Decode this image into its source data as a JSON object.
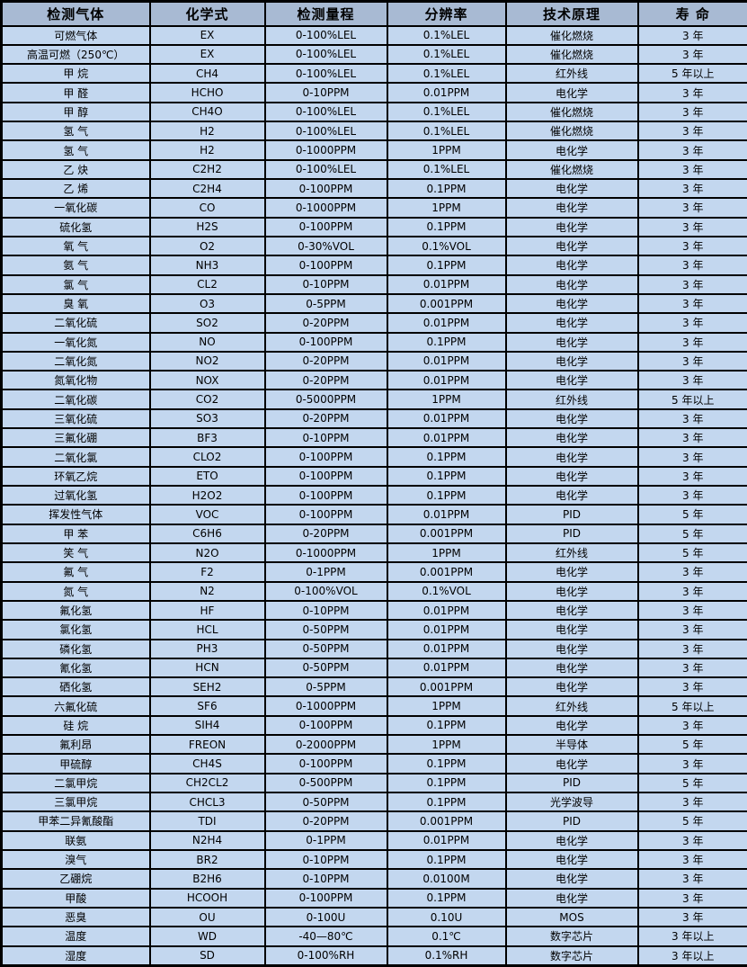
{
  "colors": {
    "header_bg": "#a8bad3",
    "row_bg": "#c3d7ef",
    "border": "#000000",
    "text": "#000000"
  },
  "table": {
    "columns": [
      "检测气体",
      "化学式",
      "检测量程",
      "分辨率",
      "技术原理",
      "寿 命"
    ],
    "rows": [
      [
        "可燃气体",
        "EX",
        "0-100%LEL",
        "0.1%LEL",
        "催化燃烧",
        "3 年"
      ],
      [
        "高温可燃（250℃）",
        "EX",
        "0-100%LEL",
        "0.1%LEL",
        "催化燃烧",
        "3 年"
      ],
      [
        "甲 烷",
        "CH4",
        "0-100%LEL",
        "0.1%LEL",
        "红外线",
        "5 年以上"
      ],
      [
        "甲 醛",
        "HCHO",
        "0-10PPM",
        "0.01PPM",
        "电化学",
        "3 年"
      ],
      [
        "甲 醇",
        "CH4O",
        "0-100%LEL",
        "0.1%LEL",
        "催化燃烧",
        "3 年"
      ],
      [
        "氢 气",
        "H2",
        "0-100%LEL",
        "0.1%LEL",
        "催化燃烧",
        "3 年"
      ],
      [
        "氢 气",
        "H2",
        "0-1000PPM",
        "1PPM",
        "电化学",
        "3 年"
      ],
      [
        "乙 炔",
        "C2H2",
        "0-100%LEL",
        "0.1%LEL",
        "催化燃烧",
        "3 年"
      ],
      [
        "乙 烯",
        "C2H4",
        "0-100PPM",
        "0.1PPM",
        "电化学",
        "3 年"
      ],
      [
        "一氧化碳",
        "CO",
        "0-1000PPM",
        "1PPM",
        "电化学",
        "3 年"
      ],
      [
        "硫化氢",
        "H2S",
        "0-100PPM",
        "0.1PPM",
        "电化学",
        "3 年"
      ],
      [
        "氧 气",
        "O2",
        "0-30%VOL",
        "0.1%VOL",
        "电化学",
        "3 年"
      ],
      [
        "氨 气",
        "NH3",
        "0-100PPM",
        "0.1PPM",
        "电化学",
        "3 年"
      ],
      [
        "氯 气",
        "CL2",
        "0-10PPM",
        "0.01PPM",
        "电化学",
        "3 年"
      ],
      [
        "臭 氧",
        "O3",
        "0-5PPM",
        "0.001PPM",
        "电化学",
        "3 年"
      ],
      [
        "二氧化硫",
        "SO2",
        "0-20PPM",
        "0.01PPM",
        "电化学",
        "3 年"
      ],
      [
        "一氧化氮",
        "NO",
        "0-100PPM",
        "0.1PPM",
        "电化学",
        "3 年"
      ],
      [
        "二氧化氮",
        "NO2",
        "0-20PPM",
        "0.01PPM",
        "电化学",
        "3 年"
      ],
      [
        "氮氧化物",
        "NOX",
        "0-20PPM",
        "0.01PPM",
        "电化学",
        "3 年"
      ],
      [
        "二氧化碳",
        "CO2",
        "0-5000PPM",
        "1PPM",
        "红外线",
        "5 年以上"
      ],
      [
        "三氧化硫",
        "SO3",
        "0-20PPM",
        "0.01PPM",
        "电化学",
        "3 年"
      ],
      [
        "三氟化硼",
        "BF3",
        "0-10PPM",
        "0.01PPM",
        "电化学",
        "3 年"
      ],
      [
        "二氧化氯",
        "CLO2",
        "0-100PPM",
        "0.1PPM",
        "电化学",
        "3 年"
      ],
      [
        "环氧乙烷",
        "ETO",
        "0-100PPM",
        "0.1PPM",
        "电化学",
        "3 年"
      ],
      [
        "过氧化氢",
        "H2O2",
        "0-100PPM",
        "0.1PPM",
        "电化学",
        "3 年"
      ],
      [
        "挥发性气体",
        "VOC",
        "0-100PPM",
        "0.01PPM",
        "PID",
        "5 年"
      ],
      [
        "甲 苯",
        "C6H6",
        "0-20PPM",
        "0.001PPM",
        "PID",
        "5 年"
      ],
      [
        "笑 气",
        "N2O",
        "0-1000PPM",
        "1PPM",
        "红外线",
        "5 年"
      ],
      [
        "氟 气",
        "F2",
        "0-1PPM",
        "0.001PPM",
        "电化学",
        "3 年"
      ],
      [
        "氮 气",
        "N2",
        "0-100%VOL",
        "0.1%VOL",
        "电化学",
        "3 年"
      ],
      [
        "氟化氢",
        "HF",
        "0-10PPM",
        "0.01PPM",
        "电化学",
        "3 年"
      ],
      [
        "氯化氢",
        "HCL",
        "0-50PPM",
        "0.01PPM",
        "电化学",
        "3 年"
      ],
      [
        "磷化氢",
        "PH3",
        "0-50PPM",
        "0.01PPM",
        "电化学",
        "3 年"
      ],
      [
        "氰化氢",
        "HCN",
        "0-50PPM",
        "0.01PPM",
        "电化学",
        "3 年"
      ],
      [
        "硒化氢",
        "SEH2",
        "0-5PPM",
        "0.001PPM",
        "电化学",
        "3 年"
      ],
      [
        "六氟化硫",
        "SF6",
        "0-1000PPM",
        "1PPM",
        "红外线",
        "5 年以上"
      ],
      [
        "硅 烷",
        "SIH4",
        "0-100PPM",
        "0.1PPM",
        "电化学",
        "3 年"
      ],
      [
        "氟利昂",
        "FREON",
        "0-2000PPM",
        "1PPM",
        "半导体",
        "5 年"
      ],
      [
        "甲硫醇",
        "CH4S",
        "0-100PPM",
        "0.1PPM",
        "电化学",
        "3 年"
      ],
      [
        "二氯甲烷",
        "CH2CL2",
        "0-500PPM",
        "0.1PPM",
        "PID",
        "5 年"
      ],
      [
        "三氯甲烷",
        "CHCL3",
        "0-50PPM",
        "0.1PPM",
        "光学波导",
        "3 年"
      ],
      [
        "甲苯二异氰酸酯",
        "TDI",
        "0-20PPM",
        "0.001PPM",
        "PID",
        "5 年"
      ],
      [
        "联氨",
        "N2H4",
        "0-1PPM",
        "0.01PPM",
        "电化学",
        "3 年"
      ],
      [
        "溴气",
        "BR2",
        "0-10PPM",
        "0.1PPM",
        "电化学",
        "3 年"
      ],
      [
        "乙硼烷",
        "B2H6",
        "0-10PPM",
        "0.0100M",
        "电化学",
        "3 年"
      ],
      [
        "甲酸",
        "HCOOH",
        "0-100PPM",
        "0.1PPM",
        "电化学",
        "3 年"
      ],
      [
        "恶臭",
        "OU",
        "0-100U",
        "0.10U",
        "MOS",
        "3 年"
      ],
      [
        "温度",
        "WD",
        "-40—80℃",
        "0.1℃",
        "数字芯片",
        "3 年以上"
      ],
      [
        "湿度",
        "SD",
        "0-100%RH",
        "0.1%RH",
        "数字芯片",
        "3 年以上"
      ]
    ]
  }
}
